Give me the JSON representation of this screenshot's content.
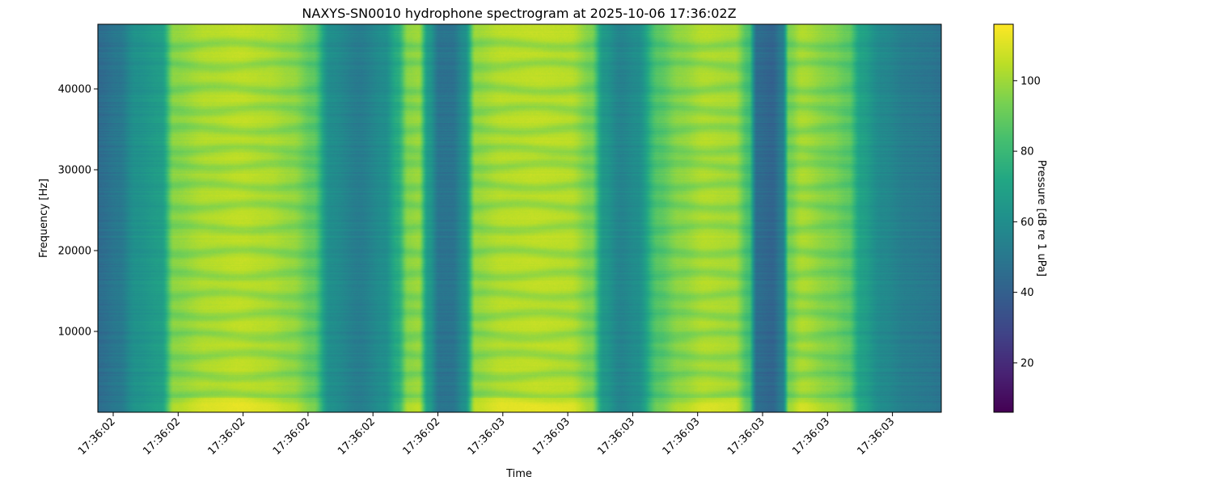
{
  "chart_data": {
    "type": "heatmap",
    "title": "NAXYS-SN0010 hydrophone spectrogram at 2025-10-06 17:36:02Z",
    "xlabel": "Time",
    "ylabel": "Frequency [Hz]",
    "colorbar_label": "Pressure [dB re 1 uPa]",
    "colormap": "viridis",
    "x_tick_labels": [
      "17:36:02",
      "17:36:02",
      "17:36:02",
      "17:36:02",
      "17:36:02",
      "17:36:02",
      "17:36:03",
      "17:36:03",
      "17:36:03",
      "17:36:03",
      "17:36:03",
      "17:36:03",
      "17:36:03"
    ],
    "y_ticks": [
      10000,
      20000,
      30000,
      40000
    ],
    "ylim": [
      0,
      48000
    ],
    "colorbar_ticks": [
      20,
      40,
      60,
      80,
      100
    ],
    "colorbar_range": [
      6,
      116
    ],
    "time_profile": [
      [
        0.0,
        45
      ],
      [
        0.025,
        50
      ],
      [
        0.045,
        62
      ],
      [
        0.075,
        68
      ],
      [
        0.09,
        98
      ],
      [
        0.13,
        104
      ],
      [
        0.17,
        106
      ],
      [
        0.2,
        104
      ],
      [
        0.23,
        100
      ],
      [
        0.255,
        90
      ],
      [
        0.275,
        60
      ],
      [
        0.31,
        52
      ],
      [
        0.34,
        60
      ],
      [
        0.355,
        75
      ],
      [
        0.368,
        98
      ],
      [
        0.38,
        100
      ],
      [
        0.392,
        66
      ],
      [
        0.405,
        48
      ],
      [
        0.42,
        48
      ],
      [
        0.435,
        60
      ],
      [
        0.448,
        100
      ],
      [
        0.48,
        105
      ],
      [
        0.52,
        106
      ],
      [
        0.56,
        105
      ],
      [
        0.585,
        95
      ],
      [
        0.6,
        65
      ],
      [
        0.62,
        55
      ],
      [
        0.64,
        60
      ],
      [
        0.665,
        88
      ],
      [
        0.69,
        98
      ],
      [
        0.72,
        104
      ],
      [
        0.755,
        102
      ],
      [
        0.772,
        85
      ],
      [
        0.782,
        45
      ],
      [
        0.8,
        42
      ],
      [
        0.812,
        52
      ],
      [
        0.82,
        95
      ],
      [
        0.835,
        103
      ],
      [
        0.87,
        96
      ],
      [
        0.89,
        90
      ],
      [
        0.905,
        70
      ],
      [
        0.93,
        58
      ],
      [
        0.96,
        52
      ],
      [
        0.985,
        50
      ],
      [
        1.0,
        48
      ]
    ],
    "freq_notch_hz": [
      2000,
      4500,
      7000,
      9500,
      12000,
      14500,
      17000,
      19800,
      22800,
      25500,
      28000,
      30500,
      32500,
      35000,
      37500,
      40000,
      43000,
      45500
    ],
    "low_freq_band_hz": [
      0,
      1800
    ]
  }
}
